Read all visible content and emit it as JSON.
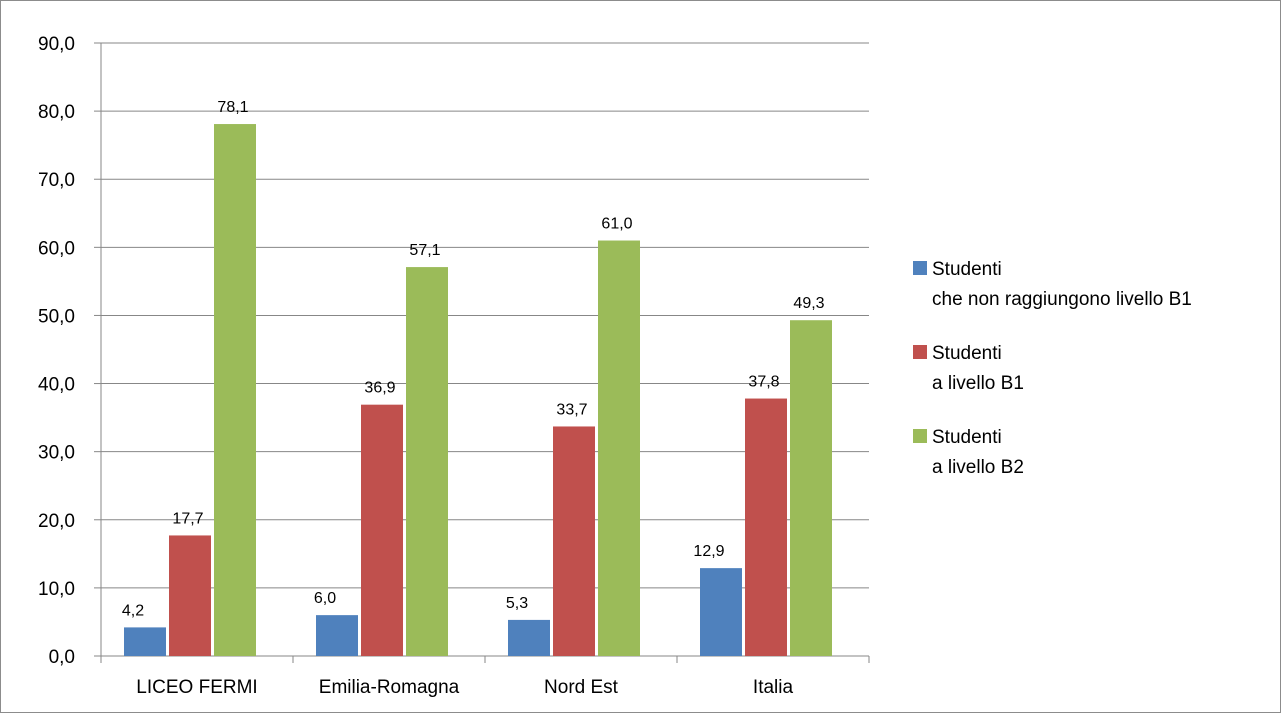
{
  "chart_data": {
    "type": "bar",
    "categories": [
      "LICEO FERMI",
      "Emilia-Romagna",
      "Nord Est",
      "Italia"
    ],
    "series": [
      {
        "name_lines": [
          "Studenti",
          "che non raggiungono livello B1"
        ],
        "color": "#4F81BD",
        "values": [
          4.2,
          6.0,
          5.3,
          12.9
        ],
        "value_labels": [
          "4,2",
          "6,0",
          "5,3",
          "12,9"
        ]
      },
      {
        "name_lines": [
          "Studenti",
          "a livello B1"
        ],
        "color": "#C0504D",
        "values": [
          17.7,
          36.9,
          33.7,
          37.8
        ],
        "value_labels": [
          "17,7",
          "36,9",
          "33,7",
          "37,8"
        ]
      },
      {
        "name_lines": [
          "Studenti",
          "a livello B2"
        ],
        "color": "#9BBB59",
        "values": [
          78.1,
          57.1,
          61.0,
          49.3
        ],
        "value_labels": [
          "78,1",
          "57,1",
          "61,0",
          "49,3"
        ]
      }
    ],
    "ylim": [
      0,
      90
    ],
    "yticks": [
      0,
      10,
      20,
      30,
      40,
      50,
      60,
      70,
      80,
      90
    ],
    "ytick_labels": [
      "0,0",
      "10,0",
      "20,0",
      "30,0",
      "40,0",
      "50,0",
      "60,0",
      "70,0",
      "80,0",
      "90,0"
    ],
    "grid": true,
    "legend_position": "right"
  }
}
